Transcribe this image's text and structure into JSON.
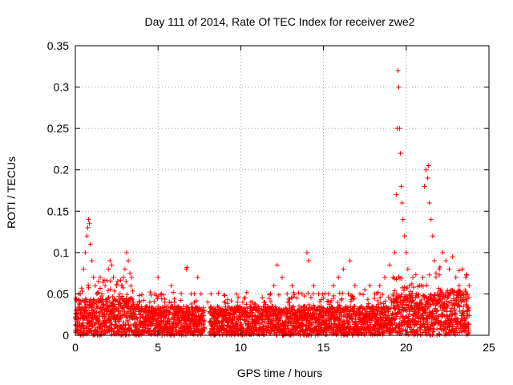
{
  "chart_data": {
    "type": "scatter",
    "title": "Day 111 of 2014, Rate Of TEC Index for receiver zwe2",
    "xlabel": "GPS time / hours",
    "ylabel": "ROTI / TECUs",
    "xlim": [
      0,
      25
    ],
    "ylim": [
      0,
      0.35
    ],
    "x_ticks": [
      0,
      5,
      10,
      15,
      20,
      25
    ],
    "y_ticks": [
      0,
      0.05,
      0.1,
      0.15,
      0.2,
      0.25,
      0.3,
      0.35
    ],
    "x_tick_labels": [
      "0",
      "5",
      "10",
      "15",
      "20",
      "25"
    ],
    "y_tick_labels": [
      "0",
      "0.05",
      "0.1",
      "0.15",
      "0.2",
      "0.25",
      "0.3",
      "0.35"
    ],
    "grid": true,
    "marker": "+",
    "marker_color": "#ff0000",
    "series": [
      {
        "name": "ROTI",
        "x": [
          0.1,
          0.3,
          0.5,
          0.6,
          0.7,
          0.75,
          0.8,
          0.85,
          0.9,
          1.0,
          1.1,
          1.2,
          1.3,
          1.4,
          1.5,
          1.6,
          1.8,
          2.0,
          2.1,
          2.2,
          2.3,
          2.5,
          2.7,
          2.8,
          2.9,
          3.0,
          3.1,
          3.2,
          3.3,
          3.4,
          3.5,
          3.7,
          3.9,
          4.2,
          4.5,
          4.8,
          5.0,
          5.2,
          5.4,
          5.6,
          5.8,
          6.0,
          6.2,
          6.4,
          6.7,
          6.75,
          7.0,
          7.2,
          7.4,
          7.6,
          8.0,
          8.2,
          8.6,
          9.0,
          9.4,
          9.8,
          10.2,
          10.6,
          11.0,
          11.4,
          11.8,
          12.0,
          12.2,
          12.5,
          12.8,
          13.1,
          13.4,
          13.7,
          14.0,
          14.1,
          14.4,
          14.7,
          15.0,
          15.3,
          15.6,
          15.9,
          16.2,
          16.5,
          16.6,
          16.9,
          17.2,
          17.5,
          17.8,
          18.1,
          18.4,
          18.7,
          19.0,
          19.2,
          19.3,
          19.4,
          19.45,
          19.5,
          19.55,
          19.6,
          19.65,
          19.7,
          19.75,
          19.8,
          19.9,
          20.0,
          20.1,
          20.2,
          20.4,
          20.6,
          20.8,
          21.0,
          21.1,
          21.2,
          21.3,
          21.35,
          21.4,
          21.5,
          21.6,
          21.7,
          21.8,
          22.0,
          22.2,
          22.4,
          22.6,
          22.8,
          23.0,
          23.2,
          23.4,
          23.6,
          23.8
        ],
        "values": [
          0.03,
          0.05,
          0.08,
          0.1,
          0.12,
          0.13,
          0.14,
          0.135,
          0.11,
          0.09,
          0.07,
          0.06,
          0.05,
          0.065,
          0.07,
          0.05,
          0.06,
          0.08,
          0.09,
          0.085,
          0.07,
          0.06,
          0.05,
          0.06,
          0.07,
          0.08,
          0.1,
          0.09,
          0.075,
          0.07,
          0.04,
          0.035,
          0.04,
          0.03,
          0.04,
          0.05,
          0.07,
          0.05,
          0.04,
          0.035,
          0.06,
          0.04,
          0.035,
          0.03,
          0.08,
          0.082,
          0.05,
          0.04,
          0.07,
          0.05,
          0.04,
          0.05,
          0.035,
          0.04,
          0.03,
          0.04,
          0.045,
          0.04,
          0.035,
          0.04,
          0.05,
          0.06,
          0.085,
          0.07,
          0.05,
          0.06,
          0.045,
          0.05,
          0.1,
          0.09,
          0.06,
          0.05,
          0.045,
          0.05,
          0.06,
          0.07,
          0.08,
          0.05,
          0.09,
          0.06,
          0.05,
          0.055,
          0.06,
          0.05,
          0.06,
          0.07,
          0.085,
          0.07,
          0.1,
          0.17,
          0.25,
          0.32,
          0.3,
          0.25,
          0.22,
          0.18,
          0.16,
          0.14,
          0.12,
          0.1,
          0.08,
          0.06,
          0.07,
          0.05,
          0.06,
          0.07,
          0.18,
          0.2,
          0.19,
          0.205,
          0.16,
          0.14,
          0.12,
          0.09,
          0.075,
          0.08,
          0.1,
          0.09,
          0.08,
          0.095,
          0.07,
          0.06,
          0.08,
          0.07,
          0.06
        ]
      }
    ]
  }
}
